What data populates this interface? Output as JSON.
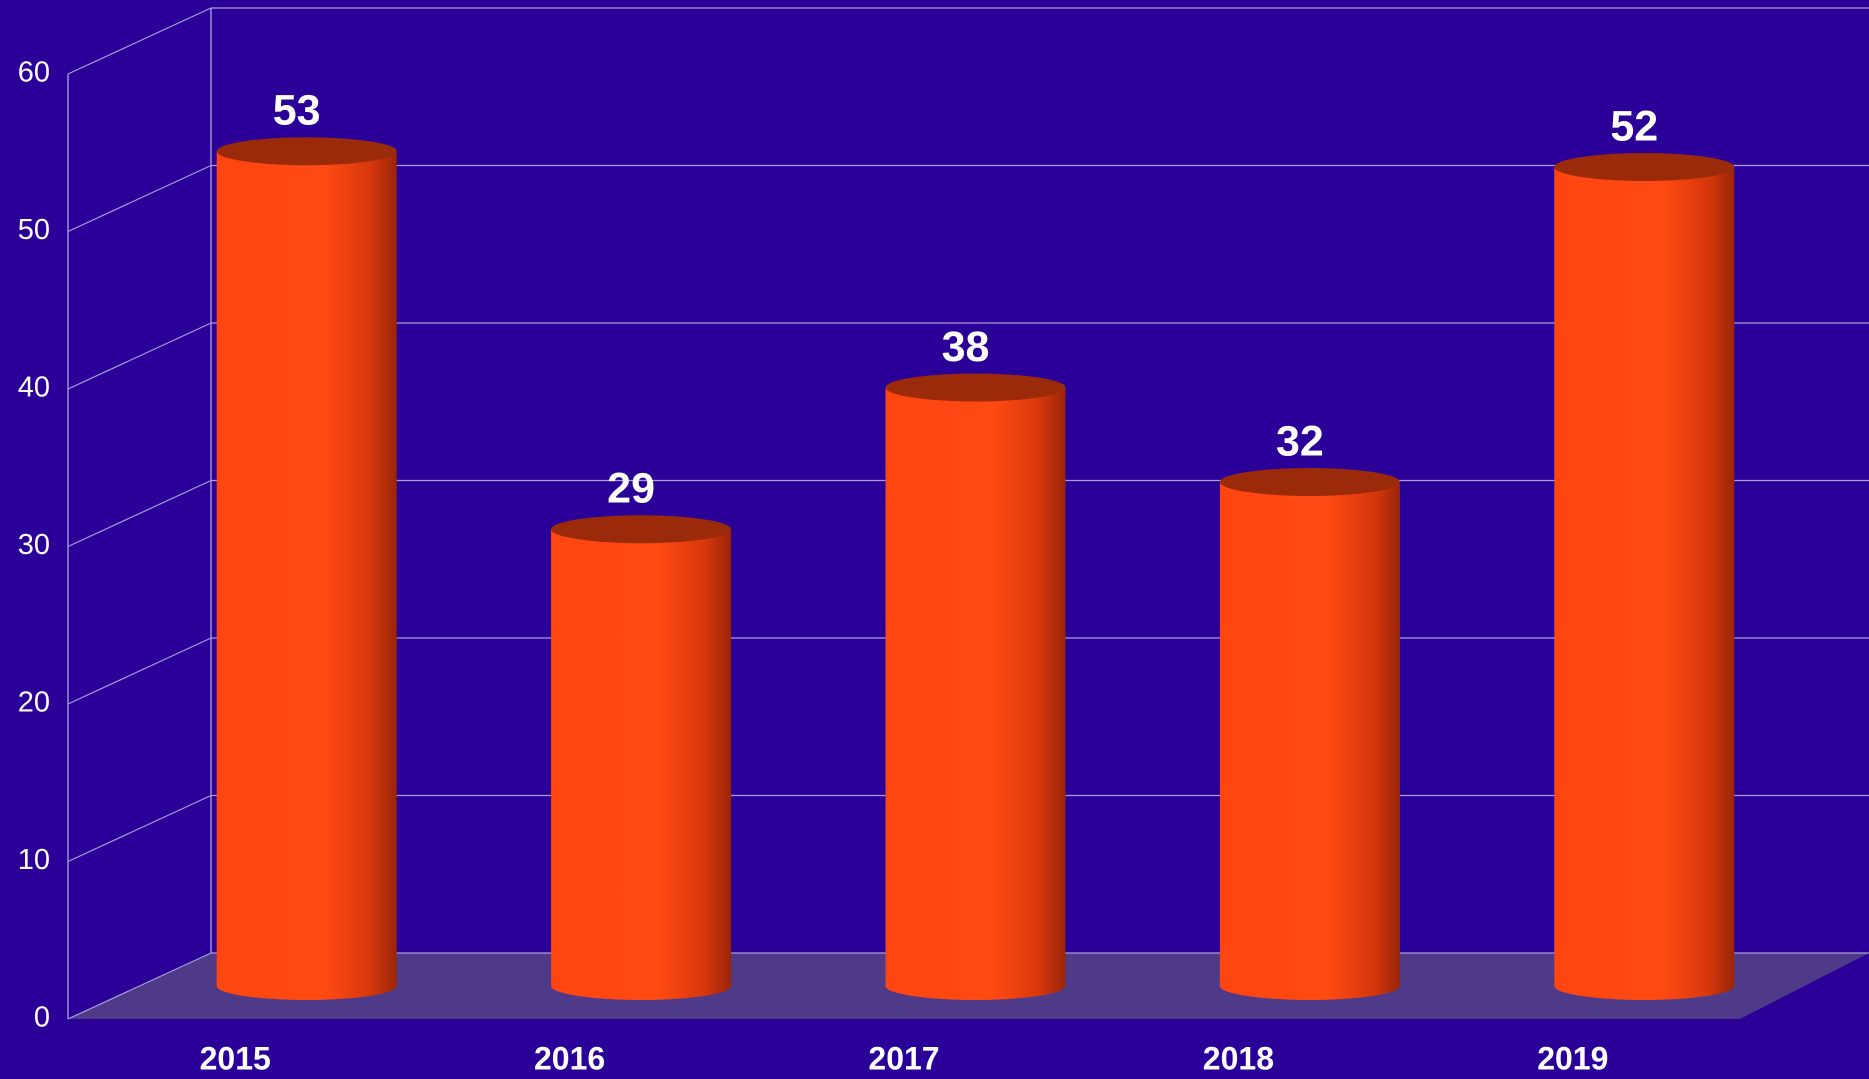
{
  "chart_data": {
    "type": "bar",
    "categories": [
      "2015",
      "2016",
      "2017",
      "2018",
      "2019"
    ],
    "values": [
      53,
      29,
      38,
      32,
      52
    ],
    "color": "#ff4810",
    "ylim": [
      0,
      60
    ],
    "yticks": [
      0,
      10,
      20,
      30,
      40,
      50,
      60
    ],
    "grid": true
  }
}
